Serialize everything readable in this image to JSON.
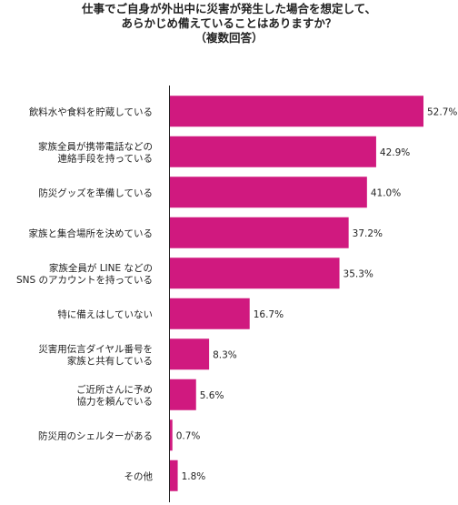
{
  "chart_data": {
    "type": "bar",
    "orientation": "horizontal",
    "title_lines": [
      "仕事でご自身が外出中に災害が発生した場合を想定して、",
      "あらかじめ備えていることはありますか？"
    ],
    "subtitle": "（複数回答）",
    "categories": [
      [
        "飲料水や食料を貯蔵している"
      ],
      [
        "家族全員が携帯電話などの",
        "連絡手段を持っている"
      ],
      [
        "防災グッズを準備している"
      ],
      [
        "家族と集合場所を決めている"
      ],
      [
        "家族全員が LINE などの",
        "SNS のアカウントを持っている"
      ],
      [
        "特に備えはしていない"
      ],
      [
        "災害用伝言ダイヤル番号を",
        "家族と共有している"
      ],
      [
        "ご近所さんに予め",
        "協力を頼んでいる"
      ],
      [
        "防災用のシェルターがある"
      ],
      [
        "その他"
      ]
    ],
    "values": [
      52.7,
      42.9,
      41.0,
      37.2,
      35.3,
      16.7,
      8.3,
      5.6,
      0.7,
      1.8
    ],
    "value_labels": [
      "52.7%",
      "42.9%",
      "41.0%",
      "37.2%",
      "35.3%",
      "16.7%",
      "8.3%",
      "5.6%",
      "0.7%",
      "1.8%"
    ],
    "unit": "%",
    "xlim": [
      0,
      55
    ],
    "grid": false,
    "legend": "none",
    "bar_color": "#d0197f"
  }
}
